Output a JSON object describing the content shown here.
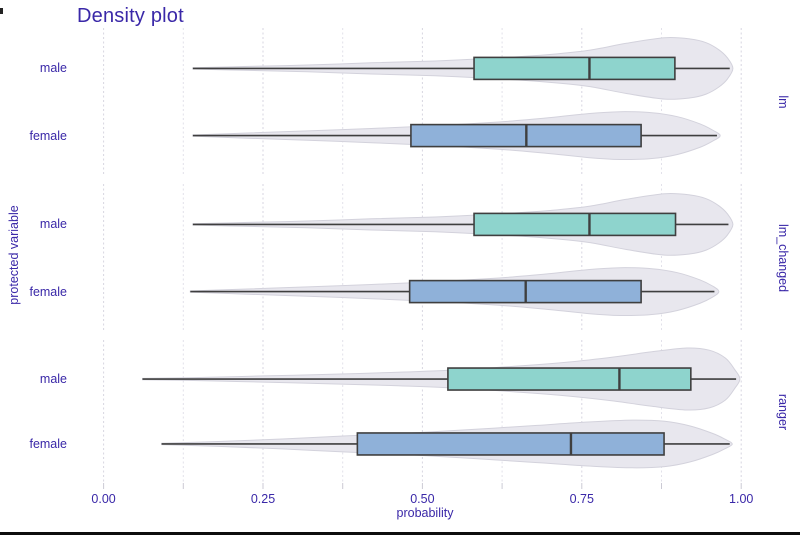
{
  "title": "Density plot",
  "chart_data": {
    "type": "violin",
    "subtype": "horizontal violin + boxplot, faceted by model",
    "title": "Density plot",
    "xlabel": "probability",
    "ylabel": "protected variable",
    "xlim": [
      0,
      1
    ],
    "grid": "vertical dashed, major every 0.25, minor every 0.125",
    "x_major_ticks": [
      {
        "value": 0.0,
        "label": "0.00"
      },
      {
        "value": 0.25,
        "label": "0.25"
      },
      {
        "value": 0.5,
        "label": "0.50"
      },
      {
        "value": 0.75,
        "label": "0.75"
      },
      {
        "value": 1.0,
        "label": "1.00"
      }
    ],
    "x_minor_step": 0.125,
    "facets": [
      {
        "label": "lm",
        "rows": [
          {
            "category": "male",
            "color": "#8ed4cd",
            "box": {
              "q1": 0.581,
              "median": 0.762,
              "q3": 0.896
            },
            "range": [
              0.14,
              0.982
            ],
            "density": [
              [
                0.14,
                0.02
              ],
              [
                0.22,
                0.06
              ],
              [
                0.32,
                0.11
              ],
              [
                0.42,
                0.18
              ],
              [
                0.52,
                0.24
              ],
              [
                0.62,
                0.34
              ],
              [
                0.7,
                0.45
              ],
              [
                0.76,
                0.58
              ],
              [
                0.82,
                0.81
              ],
              [
                0.88,
                0.99
              ],
              [
                0.92,
                0.95
              ],
              [
                0.945,
                0.83
              ],
              [
                0.965,
                0.6
              ],
              [
                0.978,
                0.35
              ],
              [
                0.987,
                0.0
              ]
            ]
          },
          {
            "category": "female",
            "color": "#8fb1d9",
            "box": {
              "q1": 0.482,
              "median": 0.663,
              "q3": 0.843
            },
            "range": [
              0.14,
              0.962
            ],
            "density": [
              [
                0.14,
                0.02
              ],
              [
                0.22,
                0.08
              ],
              [
                0.32,
                0.15
              ],
              [
                0.42,
                0.23
              ],
              [
                0.52,
                0.32
              ],
              [
                0.62,
                0.44
              ],
              [
                0.7,
                0.58
              ],
              [
                0.76,
                0.71
              ],
              [
                0.81,
                0.77
              ],
              [
                0.86,
                0.74
              ],
              [
                0.9,
                0.61
              ],
              [
                0.935,
                0.38
              ],
              [
                0.955,
                0.18
              ],
              [
                0.967,
                0.0
              ]
            ]
          }
        ]
      },
      {
        "label": "lm_changed",
        "rows": [
          {
            "category": "male",
            "color": "#8ed4cd",
            "box": {
              "q1": 0.581,
              "median": 0.762,
              "q3": 0.897
            },
            "range": [
              0.14,
              0.98
            ],
            "density": [
              [
                0.14,
                0.02
              ],
              [
                0.22,
                0.06
              ],
              [
                0.32,
                0.11
              ],
              [
                0.42,
                0.18
              ],
              [
                0.52,
                0.24
              ],
              [
                0.62,
                0.34
              ],
              [
                0.7,
                0.45
              ],
              [
                0.76,
                0.58
              ],
              [
                0.82,
                0.81
              ],
              [
                0.88,
                0.99
              ],
              [
                0.92,
                0.95
              ],
              [
                0.945,
                0.83
              ],
              [
                0.965,
                0.6
              ],
              [
                0.978,
                0.35
              ],
              [
                0.987,
                0.0
              ]
            ]
          },
          {
            "category": "female",
            "color": "#8fb1d9",
            "box": {
              "q1": 0.48,
              "median": 0.662,
              "q3": 0.843
            },
            "range": [
              0.136,
              0.958
            ],
            "density": [
              [
                0.136,
                0.02
              ],
              [
                0.22,
                0.08
              ],
              [
                0.32,
                0.15
              ],
              [
                0.42,
                0.23
              ],
              [
                0.52,
                0.32
              ],
              [
                0.62,
                0.44
              ],
              [
                0.7,
                0.58
              ],
              [
                0.76,
                0.71
              ],
              [
                0.81,
                0.77
              ],
              [
                0.86,
                0.74
              ],
              [
                0.9,
                0.61
              ],
              [
                0.935,
                0.38
              ],
              [
                0.955,
                0.18
              ],
              [
                0.965,
                0.0
              ]
            ]
          }
        ]
      },
      {
        "label": "ranger",
        "rows": [
          {
            "category": "male",
            "color": "#8ed4cd",
            "box": {
              "q1": 0.54,
              "median": 0.809,
              "q3": 0.921
            },
            "range": [
              0.061,
              0.992
            ],
            "density": [
              [
                0.061,
                0.02
              ],
              [
                0.15,
                0.05
              ],
              [
                0.25,
                0.1
              ],
              [
                0.35,
                0.15
              ],
              [
                0.45,
                0.21
              ],
              [
                0.55,
                0.29
              ],
              [
                0.65,
                0.42
              ],
              [
                0.73,
                0.55
              ],
              [
                0.8,
                0.71
              ],
              [
                0.86,
                0.88
              ],
              [
                0.915,
                1.0
              ],
              [
                0.95,
                0.93
              ],
              [
                0.975,
                0.68
              ],
              [
                0.99,
                0.3
              ],
              [
                0.998,
                0.0
              ]
            ]
          },
          {
            "category": "female",
            "color": "#8fb1d9",
            "box": {
              "q1": 0.398,
              "median": 0.733,
              "q3": 0.879
            },
            "range": [
              0.091,
              0.982
            ],
            "density": [
              [
                0.091,
                0.02
              ],
              [
                0.18,
                0.08
              ],
              [
                0.28,
                0.16
              ],
              [
                0.38,
                0.26
              ],
              [
                0.48,
                0.35
              ],
              [
                0.58,
                0.47
              ],
              [
                0.68,
                0.6
              ],
              [
                0.76,
                0.71
              ],
              [
                0.83,
                0.77
              ],
              [
                0.88,
                0.73
              ],
              [
                0.92,
                0.58
              ],
              [
                0.955,
                0.34
              ],
              [
                0.975,
                0.15
              ],
              [
                0.986,
                0.0
              ]
            ]
          }
        ]
      }
    ]
  },
  "colors": {
    "text": "#3a28a8",
    "male_fill": "#8ed4cd",
    "female_fill": "#8fb1d9",
    "violin_fill": "#e8e7ee",
    "violin_stroke": "#d3d2dc",
    "line": "#3f3f3f",
    "grid_major": "#d7d6e0",
    "grid_minor": "#e2e1ea",
    "tick": "#cbcad4",
    "window_edge": "#0d0d0d"
  }
}
